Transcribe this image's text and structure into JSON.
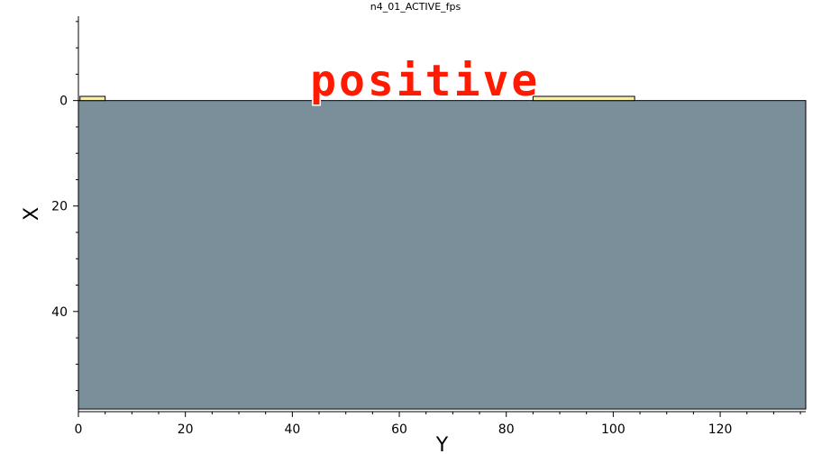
{
  "chart_data": {
    "type": "area",
    "title": "n4_01_ACTIVE_fps",
    "xlabel": "Y",
    "ylabel": "X",
    "xlim": [
      0,
      136
    ],
    "ylim": [
      59,
      -16
    ],
    "x_ticks": [
      0,
      20,
      40,
      60,
      80,
      100,
      120
    ],
    "y_ticks": [
      0,
      20,
      40
    ],
    "regions": [
      {
        "y0": 0,
        "y1": 136,
        "x0": 0,
        "x1": 58.5,
        "color": "#7a8f99"
      },
      {
        "y0": 0.3,
        "y1": 5,
        "x0": -0.8,
        "x1": 0,
        "color": "#f7eea8"
      },
      {
        "y0": 85,
        "y1": 104,
        "x0": -0.8,
        "x1": 0,
        "color": "#f7eea8"
      }
    ],
    "annotation": {
      "text": "positive",
      "color": "#ff1a00",
      "x": 44,
      "y": -1
    },
    "colors": {
      "substrate": "#7a8f99",
      "contact": "#f7eea8",
      "annotation": "#ff1a00"
    }
  }
}
